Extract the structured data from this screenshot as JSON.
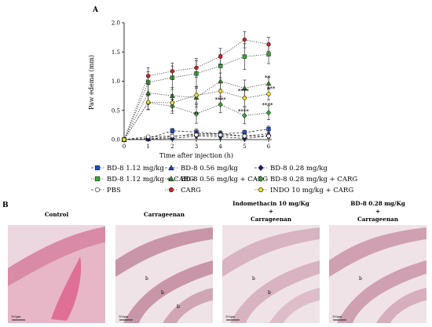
{
  "panel_a_label": "A",
  "panel_b_label": "B",
  "chart_data": {
    "type": "line",
    "xlabel": "Time after injection (h)",
    "ylabel": "Paw edema (mm)",
    "xlim": [
      0,
      6
    ],
    "ylim": [
      0,
      2.0
    ],
    "x": [
      0,
      1,
      2,
      3,
      4,
      5,
      6
    ],
    "x_ticks": [
      "0",
      "1",
      "2",
      "3",
      "4",
      "5",
      "6"
    ],
    "y_ticks": [
      "0.0",
      "0.5",
      "1.0",
      "1.5",
      "2.0"
    ],
    "y_tick_values": [
      0,
      0.5,
      1.0,
      1.5,
      2.0
    ],
    "series": [
      {
        "name": "BD-8 1.12 mg/kg",
        "color": "#1f4fbf",
        "marker": "square",
        "dash": "dashed",
        "values": [
          0,
          0.02,
          0.15,
          0.13,
          0.1,
          0.12,
          0.18
        ],
        "errors": [
          0,
          0.02,
          0.04,
          0.05,
          0.04,
          0.04,
          0.05
        ]
      },
      {
        "name": "BD-8 0.56 mg/kg",
        "color": "#1f3fa0",
        "marker": "triangle",
        "dash": "dashed",
        "values": [
          0,
          0.01,
          0.05,
          0.1,
          0.1,
          0.06,
          0.1
        ],
        "errors": [
          0,
          0.01,
          0.04,
          0.04,
          0.05,
          0.04,
          0.05
        ]
      },
      {
        "name": "BD-8 0.28 mg/kg",
        "color": "#10206a",
        "marker": "diamond",
        "dash": "dashed",
        "values": [
          0,
          0.01,
          0.02,
          0.06,
          0.05,
          0.02,
          0.06
        ],
        "errors": [
          0,
          0.01,
          0.03,
          0.04,
          0.04,
          0.04,
          0.04
        ]
      },
      {
        "name": "BD-8 1.12 mg/kg + CARG",
        "color": "#3aaa35",
        "marker": "square",
        "dash": "dotted",
        "values": [
          0,
          0.98,
          1.06,
          1.13,
          1.26,
          1.42,
          1.46
        ],
        "errors": [
          0,
          0.18,
          0.2,
          0.22,
          0.2,
          0.22,
          0.16
        ]
      },
      {
        "name": "BD-8 0.56 mg/kg + CARG",
        "color": "#2f8a2a",
        "marker": "triangle",
        "dash": "dotted",
        "values": [
          0,
          0.8,
          0.75,
          0.72,
          1.0,
          0.88,
          0.96
        ],
        "errors": [
          0,
          0.14,
          0.14,
          0.16,
          0.14,
          0.14,
          0.1
        ]
      },
      {
        "name": "BD-8 0.28 mg/kg + CARG",
        "color": "#3dab3d",
        "marker": "diamond",
        "dash": "dotted",
        "values": [
          0,
          0.63,
          0.57,
          0.44,
          0.6,
          0.41,
          0.46
        ],
        "errors": [
          0,
          0.12,
          0.12,
          0.16,
          0.14,
          0.14,
          0.12
        ]
      },
      {
        "name": "PBS",
        "color": "#000000",
        "marker": "circle-open",
        "dash": "dashed",
        "values": [
          0,
          0.05,
          0.06,
          0.08,
          0.08,
          0.06,
          0.06
        ],
        "errors": [
          0,
          0.02,
          0.03,
          0.03,
          0.03,
          0.03,
          0.03
        ]
      },
      {
        "name": "CARG",
        "color": "#d62020",
        "marker": "circle",
        "dash": "dotted",
        "values": [
          0,
          1.09,
          1.17,
          1.23,
          1.42,
          1.71,
          1.63
        ],
        "errors": [
          0,
          0.14,
          0.14,
          0.16,
          0.14,
          0.14,
          0.12
        ]
      },
      {
        "name": "INDO 10 mg/kg + CARG",
        "color": "#f0e020",
        "marker": "circle",
        "dash": "dotted",
        "values": [
          0,
          0.64,
          0.63,
          0.76,
          0.83,
          0.71,
          0.78
        ],
        "errors": [
          0,
          0.12,
          0.14,
          0.14,
          0.14,
          0.14,
          0.1
        ]
      }
    ],
    "annotations": [
      {
        "text": "*",
        "x": 2,
        "y": 0.63
      },
      {
        "text": "**",
        "x": 3,
        "y": 0.4
      },
      {
        "text": "****",
        "x": 4,
        "y": 0.65
      },
      {
        "text": "****",
        "x": 4.95,
        "y": 0.8
      },
      {
        "text": "****",
        "x": 4.95,
        "y": 0.45
      },
      {
        "text": "**",
        "x": 5.95,
        "y": 1.03
      },
      {
        "text": "***",
        "x": 6.1,
        "y": 0.84
      },
      {
        "text": "****",
        "x": 5.95,
        "y": 0.56
      }
    ],
    "legend_order": [
      0,
      3,
      6,
      1,
      4,
      7,
      2,
      5,
      8
    ],
    "legend_placement": "bottom"
  },
  "histology": {
    "panels": [
      {
        "title_lines": [
          "Control"
        ],
        "scale_label": "100µm"
      },
      {
        "title_lines": [
          "Carrageenan"
        ],
        "scale_label": "100µm",
        "marks": [
          "b",
          "b",
          "b"
        ]
      },
      {
        "title_lines": [
          "Indomethacin 10 mg/Kg",
          "+",
          "Carrageenan"
        ],
        "scale_label": "100µm",
        "marks": [
          "b",
          "b"
        ]
      },
      {
        "title_lines": [
          "BD-8 0.28 mg/Kg",
          "+",
          "Carrageenan"
        ],
        "scale_label": "100µm",
        "marks": [
          "b"
        ]
      }
    ]
  }
}
